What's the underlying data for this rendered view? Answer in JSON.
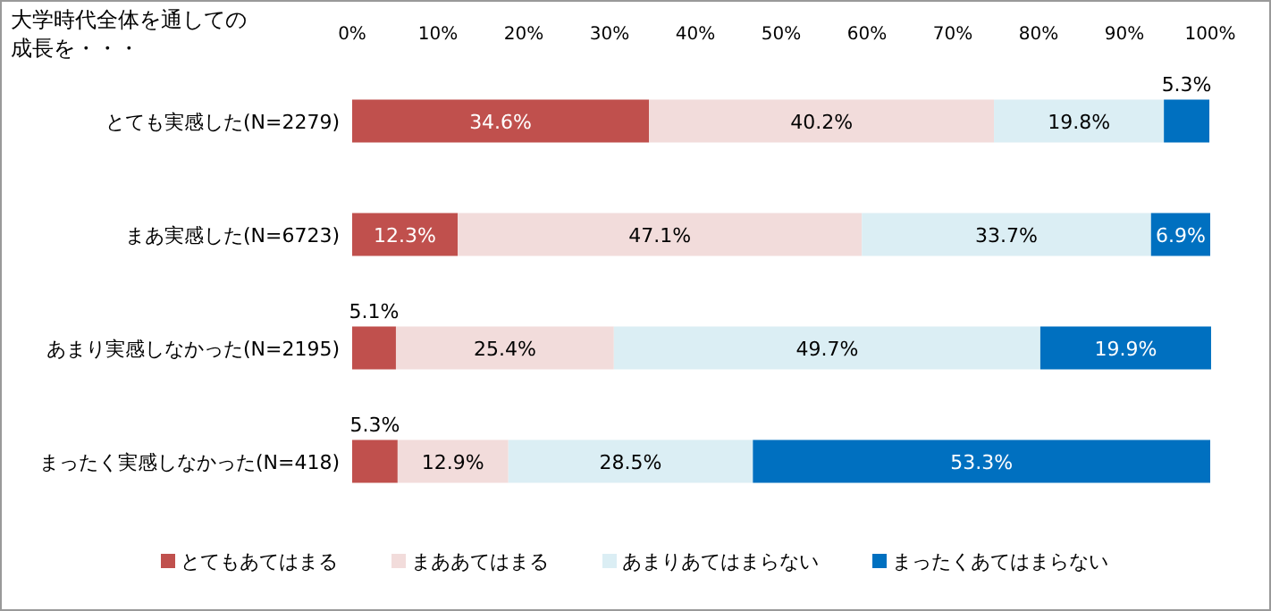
{
  "chart_data": {
    "type": "bar",
    "orientation": "horizontal",
    "stacked": true,
    "title": "大学時代全体を通しての成長を・・・",
    "categories": [
      "とても実感した(N=2279)",
      "まあ実感した(N=6723)",
      "あまり実感しなかった(N=2195)",
      "まったく実感しなかった(N=418)"
    ],
    "series": [
      {
        "name": "とてもあてはまる",
        "color": "#c0504d",
        "values": [
          34.6,
          12.3,
          5.1,
          5.3
        ],
        "value_labels": [
          "34.6%",
          "12.3%",
          "5.1%",
          "5.3%"
        ]
      },
      {
        "name": "まああてはまる",
        "color": "#f2dcdb",
        "values": [
          40.2,
          47.1,
          25.4,
          12.9
        ],
        "value_labels": [
          "40.2%",
          "47.1%",
          "25.4%",
          "12.9%"
        ]
      },
      {
        "name": "あまりあてはまらない",
        "color": "#dbeef4",
        "values": [
          19.8,
          33.7,
          49.7,
          28.5
        ],
        "value_labels": [
          "19.8%",
          "33.7%",
          "49.7%",
          "28.5%"
        ]
      },
      {
        "name": "まったくあてはまらない",
        "color": "#0070c0",
        "values": [
          5.3,
          6.9,
          19.9,
          53.3
        ],
        "value_labels": [
          "5.3%",
          "6.9%",
          "19.9%",
          "53.3%"
        ]
      }
    ],
    "xlim": [
      0,
      100
    ],
    "xticks": [
      {
        "value": 0,
        "label": "0%"
      },
      {
        "value": 10,
        "label": "10%"
      },
      {
        "value": 20,
        "label": "20%"
      },
      {
        "value": 30,
        "label": "30%"
      },
      {
        "value": 40,
        "label": "40%"
      },
      {
        "value": 50,
        "label": "50%"
      },
      {
        "value": 60,
        "label": "60%"
      },
      {
        "value": 70,
        "label": "70%"
      },
      {
        "value": 80,
        "label": "80%"
      },
      {
        "value": 90,
        "label": "90%"
      },
      {
        "value": 100,
        "label": "100%"
      }
    ],
    "grid": false,
    "legend": "bottom"
  }
}
